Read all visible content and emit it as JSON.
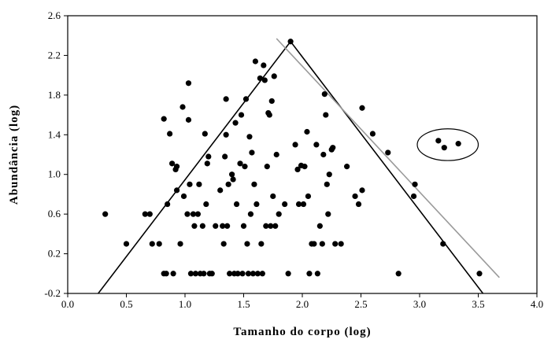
{
  "chart_data": {
    "type": "scatter",
    "title": "",
    "xlabel": "Tamanho do corpo (log)",
    "ylabel": "Abundância (log)",
    "xlim": [
      0.0,
      4.0
    ],
    "ylim": [
      -0.2,
      2.6
    ],
    "x_ticks": [
      "0.0",
      "0.5",
      "1.0",
      "1.5",
      "2.0",
      "2.5",
      "3.0",
      "3.5",
      "4.0"
    ],
    "y_ticks": [
      "-0.2",
      "0.2",
      "0.6",
      "1.0",
      "1.4",
      "1.8",
      "2.2",
      "2.6"
    ],
    "grid": false,
    "legend": "none",
    "marker_color": "#000000",
    "points": [
      [
        0.32,
        0.6
      ],
      [
        0.5,
        0.3
      ],
      [
        0.66,
        0.6
      ],
      [
        0.7,
        0.6
      ],
      [
        0.72,
        0.3
      ],
      [
        0.78,
        0.3
      ],
      [
        0.82,
        1.56
      ],
      [
        0.82,
        0.0
      ],
      [
        0.84,
        0.0
      ],
      [
        0.85,
        0.7
      ],
      [
        0.87,
        1.41
      ],
      [
        0.89,
        1.11
      ],
      [
        0.9,
        0.0
      ],
      [
        0.92,
        1.05
      ],
      [
        0.93,
        1.08
      ],
      [
        0.93,
        0.84
      ],
      [
        0.96,
        0.3
      ],
      [
        0.98,
        1.68
      ],
      [
        0.99,
        0.78
      ],
      [
        1.02,
        0.6
      ],
      [
        1.03,
        1.92
      ],
      [
        1.03,
        1.55
      ],
      [
        1.04,
        0.9
      ],
      [
        1.05,
        0.0
      ],
      [
        1.07,
        0.6
      ],
      [
        1.08,
        0.48
      ],
      [
        1.09,
        0.0
      ],
      [
        1.11,
        0.6
      ],
      [
        1.12,
        0.9
      ],
      [
        1.13,
        0.0
      ],
      [
        1.15,
        0.48
      ],
      [
        1.16,
        0.0
      ],
      [
        1.17,
        1.41
      ],
      [
        1.18,
        0.7
      ],
      [
        1.19,
        1.11
      ],
      [
        1.2,
        1.18
      ],
      [
        1.21,
        0.0
      ],
      [
        1.23,
        0.0
      ],
      [
        1.26,
        0.48
      ],
      [
        1.3,
        0.84
      ],
      [
        1.32,
        0.48
      ],
      [
        1.33,
        0.3
      ],
      [
        1.34,
        1.18
      ],
      [
        1.35,
        1.76
      ],
      [
        1.35,
        1.4
      ],
      [
        1.36,
        0.48
      ],
      [
        1.37,
        0.9
      ],
      [
        1.38,
        0.0
      ],
      [
        1.4,
        1.0
      ],
      [
        1.41,
        0.95
      ],
      [
        1.42,
        0.0
      ],
      [
        1.43,
        1.52
      ],
      [
        1.44,
        0.7
      ],
      [
        1.45,
        0.0
      ],
      [
        1.47,
        1.11
      ],
      [
        1.48,
        1.6
      ],
      [
        1.49,
        0.0
      ],
      [
        1.5,
        0.48
      ],
      [
        1.51,
        1.08
      ],
      [
        1.52,
        1.76
      ],
      [
        1.53,
        0.3
      ],
      [
        1.54,
        0.0
      ],
      [
        1.55,
        1.38
      ],
      [
        1.56,
        0.6
      ],
      [
        1.57,
        1.22
      ],
      [
        1.58,
        0.0
      ],
      [
        1.59,
        0.9
      ],
      [
        1.6,
        2.14
      ],
      [
        1.61,
        0.7
      ],
      [
        1.62,
        0.0
      ],
      [
        1.64,
        1.97
      ],
      [
        1.65,
        0.3
      ],
      [
        1.66,
        0.0
      ],
      [
        1.67,
        2.1
      ],
      [
        1.68,
        1.95
      ],
      [
        1.69,
        0.48
      ],
      [
        1.7,
        1.08
      ],
      [
        1.71,
        1.62
      ],
      [
        1.72,
        1.6
      ],
      [
        1.73,
        0.48
      ],
      [
        1.74,
        1.74
      ],
      [
        1.75,
        0.78
      ],
      [
        1.76,
        1.99
      ],
      [
        1.77,
        0.48
      ],
      [
        1.78,
        1.2
      ],
      [
        1.8,
        0.6
      ],
      [
        1.85,
        0.7
      ],
      [
        1.88,
        0.0
      ],
      [
        1.9,
        2.34
      ],
      [
        1.94,
        1.3
      ],
      [
        1.96,
        1.05
      ],
      [
        1.97,
        0.7
      ],
      [
        1.99,
        1.09
      ],
      [
        2.01,
        0.7
      ],
      [
        2.02,
        1.08
      ],
      [
        2.04,
        1.43
      ],
      [
        2.05,
        0.78
      ],
      [
        2.06,
        0.0
      ],
      [
        2.08,
        0.3
      ],
      [
        2.1,
        0.3
      ],
      [
        2.12,
        1.3
      ],
      [
        2.13,
        0.0
      ],
      [
        2.15,
        0.48
      ],
      [
        2.17,
        0.3
      ],
      [
        2.18,
        1.2
      ],
      [
        2.19,
        1.81
      ],
      [
        2.2,
        1.6
      ],
      [
        2.21,
        0.9
      ],
      [
        2.22,
        0.6
      ],
      [
        2.23,
        1.0
      ],
      [
        2.25,
        1.25
      ],
      [
        2.26,
        1.27
      ],
      [
        2.28,
        0.3
      ],
      [
        2.33,
        0.3
      ],
      [
        2.38,
        1.08
      ],
      [
        2.45,
        0.78
      ],
      [
        2.48,
        0.7
      ],
      [
        2.51,
        0.84
      ],
      [
        2.51,
        1.67
      ],
      [
        2.6,
        1.41
      ],
      [
        2.73,
        1.22
      ],
      [
        2.82,
        0.0
      ],
      [
        2.95,
        0.78
      ],
      [
        2.96,
        0.9
      ],
      [
        3.16,
        1.34
      ],
      [
        3.21,
        1.27
      ],
      [
        3.2,
        0.3
      ],
      [
        3.33,
        1.31
      ],
      [
        3.51,
        0.0
      ]
    ],
    "lines": [
      {
        "name": "",
        "color": "#000000",
        "points": [
          [
            0.26,
            -0.2
          ],
          [
            1.9,
            2.34
          ],
          [
            3.54,
            -0.2
          ]
        ]
      },
      {
        "name": "",
        "color": "#9a9a9a",
        "points": [
          [
            1.78,
            2.37
          ],
          [
            3.68,
            -0.04
          ]
        ]
      }
    ],
    "annotations": [
      {
        "type": "ellipse",
        "center": [
          3.24,
          1.3
        ],
        "rx": 0.26,
        "ry": 0.16
      }
    ]
  }
}
